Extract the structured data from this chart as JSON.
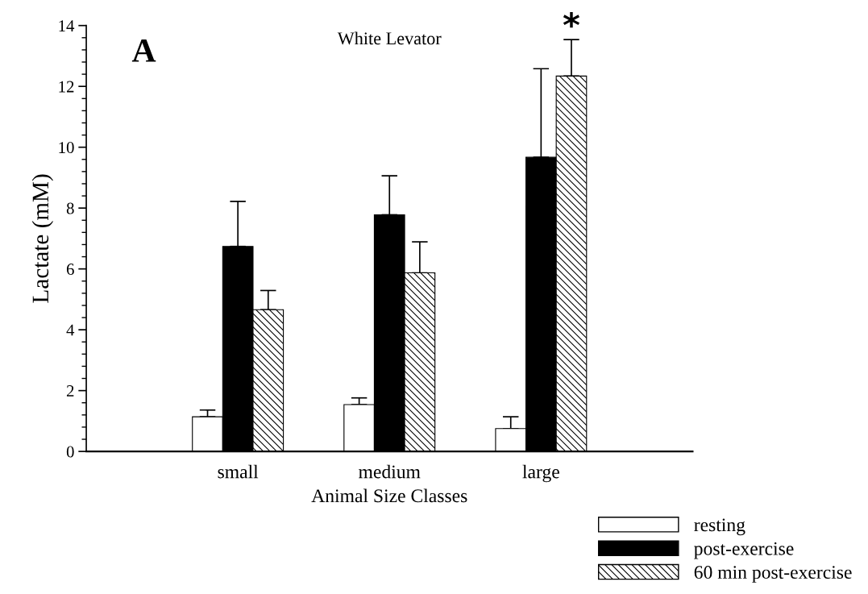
{
  "chart_data": {
    "type": "bar",
    "title": "White Levator",
    "xlabel": "Animal Size Classes",
    "ylabel": "Lactate (mM)",
    "categories": [
      "small",
      "medium",
      "large"
    ],
    "series": [
      {
        "name": "resting",
        "color": "#ffffff",
        "values": [
          1.14,
          1.54,
          0.75
        ],
        "errors": [
          [
            1.14,
            1.36
          ],
          [
            1.54,
            1.76
          ],
          [
            0.75,
            1.14
          ]
        ]
      },
      {
        "name": "post-exercise",
        "color": "#000000",
        "values": [
          6.74,
          7.78,
          9.67
        ],
        "errors": [
          [
            6.74,
            8.22
          ],
          [
            7.78,
            9.06
          ],
          [
            9.67,
            12.58
          ]
        ]
      },
      {
        "name": "60 min post-exercise",
        "color": "#000000",
        "values": [
          4.66,
          5.87,
          12.34
        ],
        "errors": [
          [
            4.66,
            5.29
          ],
          [
            5.87,
            6.89
          ],
          [
            12.34,
            13.54
          ]
        ]
      }
    ],
    "ylim": [
      0,
      14
    ],
    "yticks": [
      0,
      2,
      4,
      6,
      8,
      10,
      12,
      14
    ],
    "grid": false,
    "legend": "bottom right",
    "annotations": [
      "A",
      "*"
    ]
  }
}
